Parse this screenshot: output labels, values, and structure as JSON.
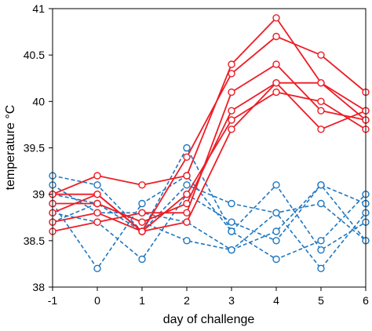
{
  "chart_data": {
    "type": "line",
    "title": "",
    "xlabel": "day of challenge",
    "ylabel": "temperature °C",
    "xlim": [
      -1,
      6
    ],
    "ylim": [
      38,
      41
    ],
    "x": [
      -1,
      0,
      1,
      2,
      3,
      4,
      5,
      6
    ],
    "x_tick_labels": [
      "-1",
      "0",
      "1",
      "2",
      "3",
      "4",
      "5",
      "6"
    ],
    "y_ticks": [
      38,
      38.5,
      39,
      39.5,
      40,
      40.5,
      41
    ],
    "y_tick_labels": [
      "38",
      "38.5",
      "39",
      "39.5",
      "40",
      "40.5",
      "41"
    ],
    "grid": false,
    "legend": "none",
    "marker": "open-circle",
    "colors": {
      "red": "#ee1c25",
      "blue": "#1f77c0"
    },
    "series": [
      {
        "color": "red",
        "style": "solid",
        "values": [
          39.0,
          39.2,
          39.1,
          39.2,
          40.4,
          40.9,
          40.2,
          39.9
        ]
      },
      {
        "color": "red",
        "style": "solid",
        "values": [
          38.8,
          39.0,
          38.6,
          39.4,
          40.3,
          40.7,
          40.5,
          40.1
        ]
      },
      {
        "color": "red",
        "style": "solid",
        "values": [
          38.6,
          38.7,
          38.8,
          38.8,
          40.1,
          40.4,
          39.9,
          39.8
        ]
      },
      {
        "color": "red",
        "style": "solid",
        "values": [
          38.9,
          38.9,
          38.7,
          38.9,
          39.9,
          40.2,
          39.7,
          39.9
        ]
      },
      {
        "color": "red",
        "style": "solid",
        "values": [
          39.0,
          39.0,
          38.6,
          39.0,
          39.8,
          40.1,
          40.0,
          39.7
        ]
      },
      {
        "color": "red",
        "style": "solid",
        "values": [
          38.7,
          38.8,
          38.6,
          38.7,
          39.7,
          40.2,
          40.2,
          39.8
        ]
      },
      {
        "color": "blue",
        "style": "dashed",
        "values": [
          39.2,
          39.1,
          38.6,
          39.5,
          38.6,
          38.3,
          38.5,
          39.0
        ]
      },
      {
        "color": "blue",
        "style": "dashed",
        "values": [
          39.1,
          38.8,
          38.8,
          38.7,
          38.4,
          38.8,
          38.2,
          38.8
        ]
      },
      {
        "color": "blue",
        "style": "dashed",
        "values": [
          38.9,
          38.2,
          38.9,
          39.2,
          38.6,
          39.1,
          38.4,
          38.7
        ]
      },
      {
        "color": "blue",
        "style": "dashed",
        "values": [
          38.8,
          38.7,
          38.3,
          39.0,
          38.7,
          38.5,
          39.1,
          38.5
        ]
      },
      {
        "color": "blue",
        "style": "dashed",
        "values": [
          39.0,
          38.9,
          38.7,
          38.5,
          38.4,
          38.6,
          39.1,
          38.9
        ]
      },
      {
        "color": "blue",
        "style": "dashed",
        "values": [
          38.7,
          38.9,
          38.6,
          39.1,
          38.9,
          38.8,
          38.9,
          38.5
        ]
      }
    ]
  }
}
